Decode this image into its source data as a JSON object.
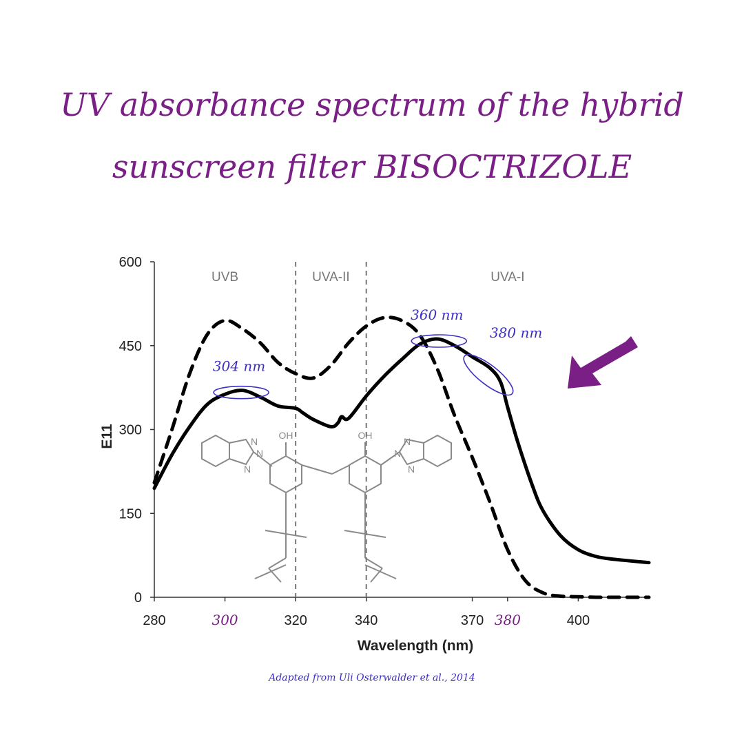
{
  "title_line1": "UV absorbance spectrum of the hybrid",
  "title_line2": "sunscreen filter BISOCTRIZOLE",
  "credit": "Adapted from Uli Osterwalder et al., 2014",
  "colors": {
    "title": "#7a1f86",
    "annotation": "#3d2fc2",
    "arrow": "#7a1f86",
    "curve": "#000000",
    "axis": "#333333",
    "region_label": "#777777",
    "structure": "#8a8a8a"
  },
  "chart_data": {
    "type": "line",
    "xlabel": "Wavelength (nm)",
    "ylabel": "E11",
    "xlim": [
      280,
      420
    ],
    "ylim": [
      0,
      600
    ],
    "grid": false,
    "x_ticks": [
      {
        "value": 280,
        "label": "280",
        "highlight": false
      },
      {
        "value": 300,
        "label": "300",
        "highlight": true
      },
      {
        "value": 320,
        "label": "320",
        "highlight": false
      },
      {
        "value": 340,
        "label": "340",
        "highlight": false
      },
      {
        "value": 370,
        "label": "370",
        "highlight": false
      },
      {
        "value": 380,
        "label": "380",
        "highlight": true
      },
      {
        "value": 400,
        "label": "400",
        "highlight": false
      }
    ],
    "y_ticks": [
      {
        "value": 0,
        "label": "0"
      },
      {
        "value": 150,
        "label": "150"
      },
      {
        "value": 300,
        "label": "300"
      },
      {
        "value": 450,
        "label": "450"
      },
      {
        "value": 600,
        "label": "600"
      }
    ],
    "region_dividers": [
      320,
      340
    ],
    "regions": [
      {
        "label": "UVB",
        "center": 300
      },
      {
        "label": "UVA-II",
        "center": 330
      },
      {
        "label": "UVA-I",
        "center": 380
      }
    ],
    "series": [
      {
        "style": "solid",
        "x": [
          280,
          285,
          290,
          295,
          300,
          305,
          310,
          315,
          320,
          322,
          325,
          330,
          332,
          333,
          335,
          340,
          345,
          350,
          355,
          360,
          365,
          370,
          375,
          378,
          380,
          383,
          387,
          390,
          395,
          400,
          405,
          410,
          420
        ],
        "y": [
          195,
          255,
          305,
          345,
          363,
          370,
          358,
          342,
          338,
          330,
          318,
          305,
          312,
          323,
          320,
          360,
          395,
          425,
          452,
          462,
          450,
          430,
          410,
          385,
          340,
          275,
          200,
          155,
          110,
          85,
          73,
          68,
          62
        ]
      },
      {
        "style": "dashed",
        "x": [
          280,
          285,
          290,
          295,
          300,
          305,
          310,
          315,
          320,
          325,
          330,
          335,
          340,
          345,
          350,
          355,
          360,
          365,
          370,
          375,
          380,
          385,
          390,
          395,
          400,
          405,
          410,
          420
        ],
        "y": [
          205,
          300,
          400,
          470,
          495,
          480,
          455,
          420,
          400,
          392,
          415,
          455,
          485,
          500,
          495,
          470,
          410,
          325,
          250,
          170,
          85,
          30,
          8,
          2,
          1,
          0,
          0,
          0
        ]
      }
    ],
    "annotations": [
      {
        "label": "304 nm",
        "x": 304,
        "y": 370
      },
      {
        "label": "360 nm",
        "x": 360,
        "y": 462
      },
      {
        "label": "380 nm",
        "x": 373,
        "y": 415
      }
    ]
  }
}
